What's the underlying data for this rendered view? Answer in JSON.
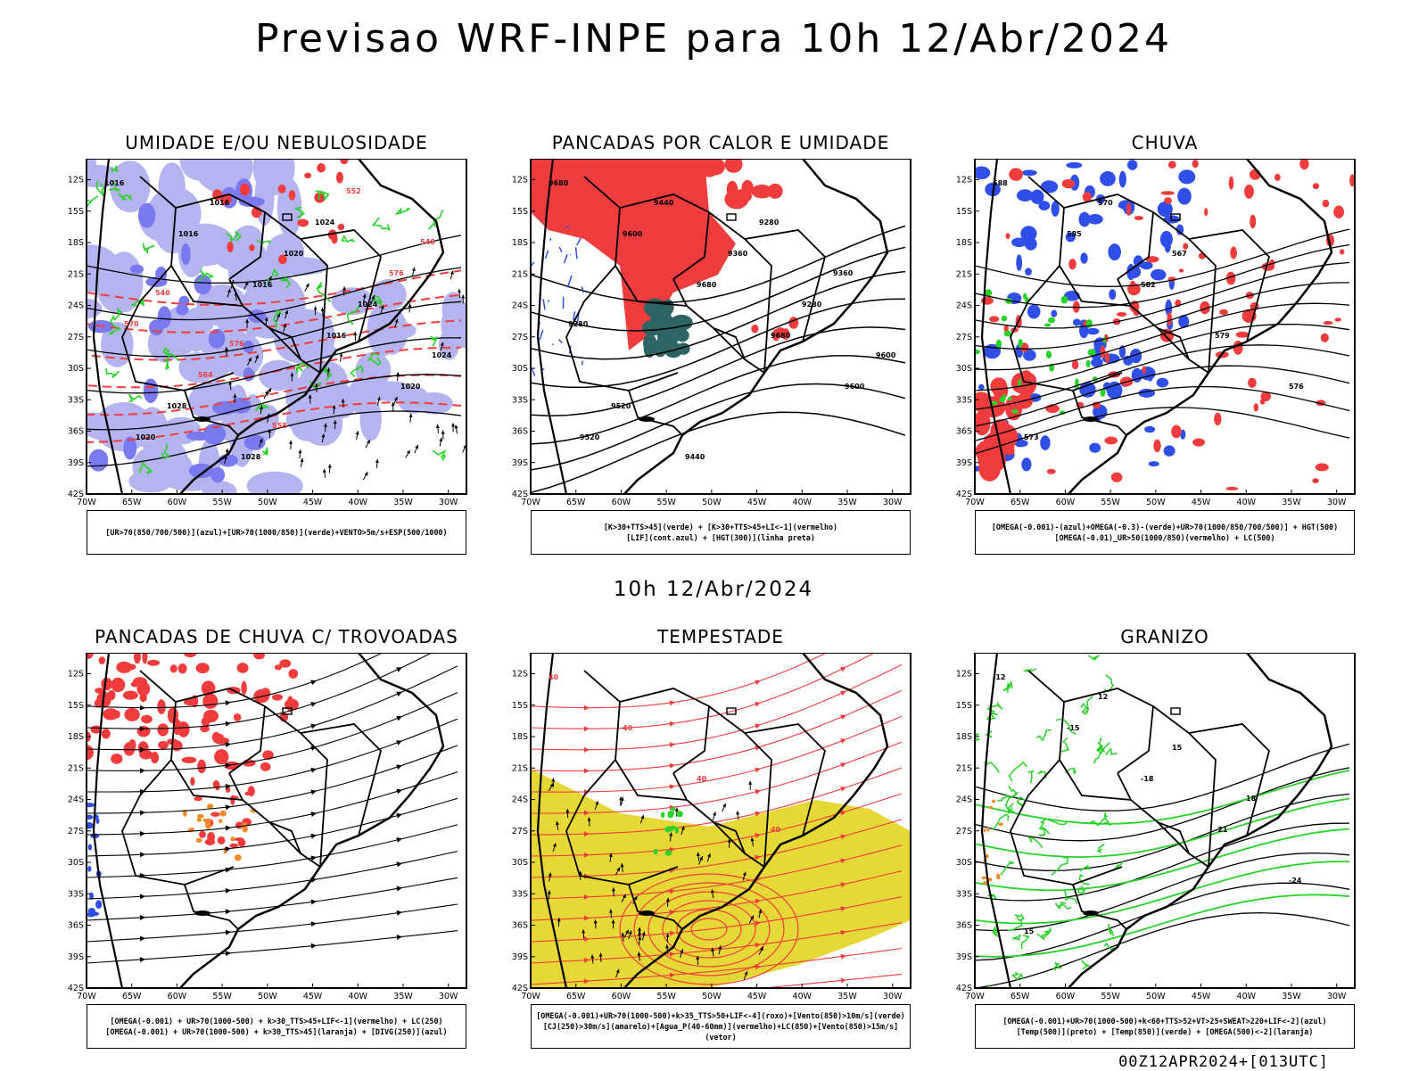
{
  "title": "Previsao WRF-INPE  para 10h 12/Abr/2024",
  "subtitle": "10h 12/Abr/2024",
  "footer": "00Z12APR2024+[013UTC]",
  "lat_labels": [
    "12S",
    "15S",
    "18S",
    "21S",
    "24S",
    "27S",
    "30S",
    "33S",
    "36S",
    "39S",
    "42S"
  ],
  "lon_labels": [
    "70W",
    "65W",
    "60W",
    "55W",
    "50W",
    "45W",
    "40W",
    "35W",
    "30W"
  ],
  "colors": {
    "red": "#f03c3c",
    "blue": "#2f4fe8",
    "green": "#28d228",
    "lavender": "#b4b4f0",
    "teal": "#2e6464",
    "yellow": "#e6d837",
    "orange": "#f08c28"
  },
  "panels": [
    {
      "id": "umidade",
      "title": "UMIDADE E/OU NEBULOSIDADE",
      "legend": [
        "[UR>70(850/700/500)](azul)+[UR>70(1000/850)](verde)+VENTO>5m/s+ESP(500/1000)"
      ]
    },
    {
      "id": "pancadas-calor",
      "title": "PANCADAS POR CALOR E UMIDADE",
      "legend": [
        "[K>30+TTS>45](verde) + [K>30+TTS>45+LI<-1](vermelho)",
        "[LIF](cont.azul) + [HGT(300)](linha preta)"
      ]
    },
    {
      "id": "chuva",
      "title": "CHUVA",
      "legend": [
        "[OMEGA(-0.001)-(azul)+OMEGA(-0.3)-(verde)+UR>70(1000/850/700/500)] + HGT(500)",
        "[OMEGA(-0.01)_UR>50(1000/850)(vermelho) + LC(500)"
      ]
    },
    {
      "id": "trovoadas",
      "title": "PANCADAS DE CHUVA C/ TROVOADAS",
      "legend": [
        "[OMEGA(-0.001) + UR>70(1000-500) + k>30_TTS>45+LIF<-1](vermelho) + LC(250)",
        "[OMEGA(-0.001) + UR>70(1000-500) + k>30_TTS>45](laranja) + [DIVG(250)](azul)"
      ]
    },
    {
      "id": "tempestade",
      "title": "TEMPESTADE",
      "legend": [
        "[OMEGA(-0.001)+UR>70(1000-500)+k>35_TTS>50+LIF<-4](roxo)+[Vento(850)>10m/s](verde)",
        "[CJ(250)>30m/s](amarelo)+[Agua_P(40-60mm)](vermelho)+LC(850)+[Vento(850)>15m/s](vetor)"
      ]
    },
    {
      "id": "granizo",
      "title": "GRANIZO",
      "legend": [
        "[OMEGA(-0.001)+UR>70(1000-500)+k<60+TTS>52+VT>25+SWEAT>220+LIF<-2](azul)",
        "[Temp(500)](preto) + [Temp(850)](verde) + [OMEGA(500)<-2](laranja)"
      ]
    }
  ],
  "contour_labels": {
    "umidade": [
      "1016",
      "1016",
      "1016",
      "1016",
      "1020",
      "1020",
      "1016",
      "1020",
      "1024",
      "1024",
      "1028",
      "1028",
      "1024",
      "576",
      "570",
      "564",
      "558",
      "552",
      "546",
      "540",
      "576"
    ],
    "pancadas-calor": [
      "9680",
      "9600",
      "9680",
      "9680",
      "9600",
      "9520",
      "9440",
      "9360",
      "9280",
      "9600",
      "9520",
      "9440",
      "9280",
      "9360",
      "9280"
    ],
    "chuva": [
      "588",
      "585",
      "582",
      "579",
      "576",
      "573",
      "570",
      "567"
    ],
    "tempestade": [
      "40",
      "40",
      "40",
      "40"
    ],
    "granizo": [
      "-12",
      "-15",
      "-18",
      "-21",
      "-24",
      "15",
      "12",
      "15",
      "18"
    ]
  }
}
